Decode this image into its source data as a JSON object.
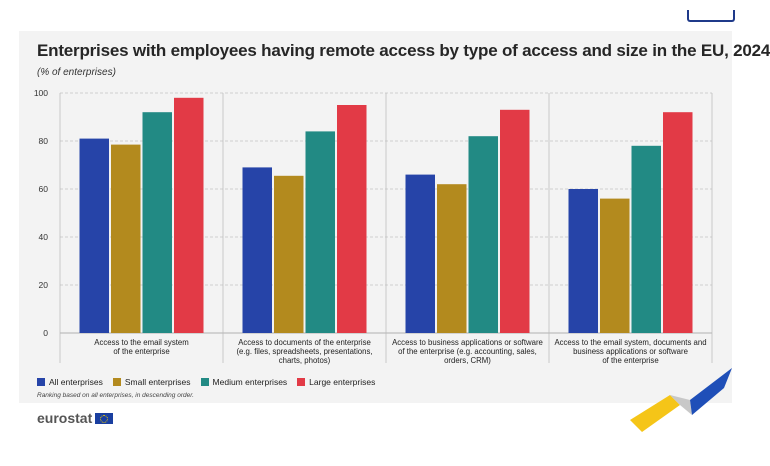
{
  "chart_data": {
    "type": "bar",
    "title": "Enterprises with employees having remote access by type of access and size in the EU, 2024",
    "subtitle": "(% of enterprises)",
    "ylim": [
      0,
      100
    ],
    "yticks": [
      0,
      20,
      40,
      60,
      80,
      100
    ],
    "categories": [
      [
        "Access to the email system",
        "of the enterprise"
      ],
      [
        "Access to documents of the enterprise",
        "(e.g. files, spreadsheets, presentations,",
        "charts, photos)"
      ],
      [
        "Access to business applications or software",
        "of the enterprise (e.g. accounting, sales,",
        "orders, CRM)"
      ],
      [
        "Access to the email system, documents and",
        "business applications or software",
        "of the enterprise"
      ]
    ],
    "series": [
      {
        "name": "All enterprises",
        "color": "#2644a8",
        "values": [
          81,
          69,
          66,
          60
        ]
      },
      {
        "name": "Small enterprises",
        "color": "#b38a1e",
        "values": [
          78.5,
          65.5,
          62,
          56
        ]
      },
      {
        "name": "Medium enterprises",
        "color": "#228a84",
        "values": [
          92,
          84,
          82,
          78
        ]
      },
      {
        "name": "Large enterprises",
        "color": "#e23a46",
        "values": [
          98,
          95,
          93,
          92
        ]
      }
    ],
    "footnote": "Ranking based on all enterprises, in descending order.",
    "source_logo": "eurostat"
  }
}
